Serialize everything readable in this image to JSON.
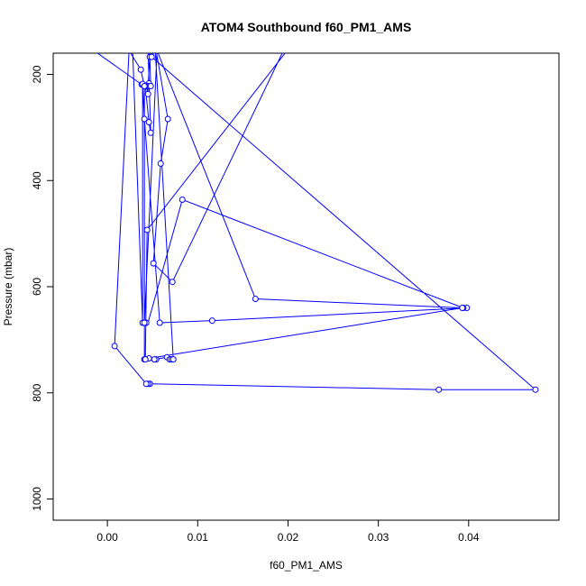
{
  "chart_data": {
    "type": "line",
    "title": "ATOM4 Southbound f60_PM1_AMS",
    "xlabel": "f60_PM1_AMS",
    "ylabel": "Pressure (mbar)",
    "xlim": [
      -0.006,
      0.05
    ],
    "ylim": [
      1040,
      160
    ],
    "y_reversed": true,
    "grid": false,
    "legend": "none",
    "x_ticks": [
      {
        "value": 0.0,
        "label": "0.00"
      },
      {
        "value": 0.01,
        "label": "0.01"
      },
      {
        "value": 0.02,
        "label": "0.02"
      },
      {
        "value": 0.03,
        "label": "0.03"
      },
      {
        "value": 0.04,
        "label": "0.04"
      }
    ],
    "y_ticks": [
      {
        "value": 200,
        "label": "200"
      },
      {
        "value": 400,
        "label": "400"
      },
      {
        "value": 600,
        "label": "600"
      },
      {
        "value": 800,
        "label": "800"
      },
      {
        "value": 1000,
        "label": "1000"
      }
    ],
    "series": [
      {
        "color": "#0000ff",
        "marker": "open-circle",
        "points": [
          {
            "x": -0.0015,
            "y": 155,
            "marker": false
          },
          {
            "x": 0.0038,
            "y": 219
          },
          {
            "x": 0.0041,
            "y": 222
          },
          {
            "x": 0.0046,
            "y": 217
          },
          {
            "x": 0.0043,
            "y": 222
          },
          {
            "x": 0.0045,
            "y": 237
          },
          {
            "x": 0.0045,
            "y": 222
          },
          {
            "x": 0.0047,
            "y": 167
          },
          {
            "x": 0.0048,
            "y": 222
          },
          {
            "x": 0.0042,
            "y": 222
          },
          {
            "x": 0.0046,
            "y": 290
          },
          {
            "x": 0.0048,
            "y": 310
          },
          {
            "x": 0.0045,
            "y": 155,
            "marker": false
          },
          {
            "x": 0.0054,
            "y": 155,
            "marker": false
          },
          {
            "x": 0.0067,
            "y": 284
          },
          {
            "x": 0.0059,
            "y": 368
          },
          {
            "x": 0.0051,
            "y": 556
          },
          {
            "x": 0.0072,
            "y": 591
          },
          {
            "x": 0.0195,
            "y": 155,
            "marker": false
          },
          {
            "x": 0.0028,
            "y": 155,
            "marker": false
          },
          {
            "x": 0.0039,
            "y": 668
          },
          {
            "x": 0.0039,
            "y": 218
          },
          {
            "x": 0.0041,
            "y": 284
          },
          {
            "x": 0.0058,
            "y": 668
          },
          {
            "x": 0.0116,
            "y": 664
          },
          {
            "x": 0.0398,
            "y": 640
          },
          {
            "x": 0.0394,
            "y": 640
          },
          {
            "x": 0.0083,
            "y": 436
          },
          {
            "x": 0.0045,
            "y": 668,
            "marker": false
          },
          {
            "x": 0.0043,
            "y": 668
          },
          {
            "x": 0.0041,
            "y": 668
          },
          {
            "x": 0.0055,
            "y": 155,
            "marker": false
          },
          {
            "x": 0.0164,
            "y": 623
          },
          {
            "x": 0.0393,
            "y": 640
          },
          {
            "x": 0.0046,
            "y": 735
          },
          {
            "x": 0.0054,
            "y": 737
          },
          {
            "x": 0.0052,
            "y": 737
          },
          {
            "x": 0.0066,
            "y": 733
          },
          {
            "x": 0.0069,
            "y": 737
          },
          {
            "x": 0.0071,
            "y": 737
          },
          {
            "x": 0.0073,
            "y": 737
          },
          {
            "x": 0.0053,
            "y": 155,
            "marker": false
          },
          {
            "x": 0.0049,
            "y": 167
          },
          {
            "x": 0.0474,
            "y": 794
          },
          {
            "x": 0.0367,
            "y": 794
          },
          {
            "x": 0.0047,
            "y": 783
          },
          {
            "x": 0.0045,
            "y": 783
          },
          {
            "x": 0.0043,
            "y": 783
          },
          {
            "x": 0.0008,
            "y": 712
          },
          {
            "x": 0.0024,
            "y": 155,
            "marker": false
          },
          {
            "x": 0.0037,
            "y": 191
          },
          {
            "x": 0.0041,
            "y": 222
          },
          {
            "x": 0.0041,
            "y": 737
          },
          {
            "x": 0.0042,
            "y": 737
          },
          {
            "x": 0.0044,
            "y": 493
          },
          {
            "x": 0.0199,
            "y": 155,
            "marker": false
          }
        ]
      }
    ]
  }
}
